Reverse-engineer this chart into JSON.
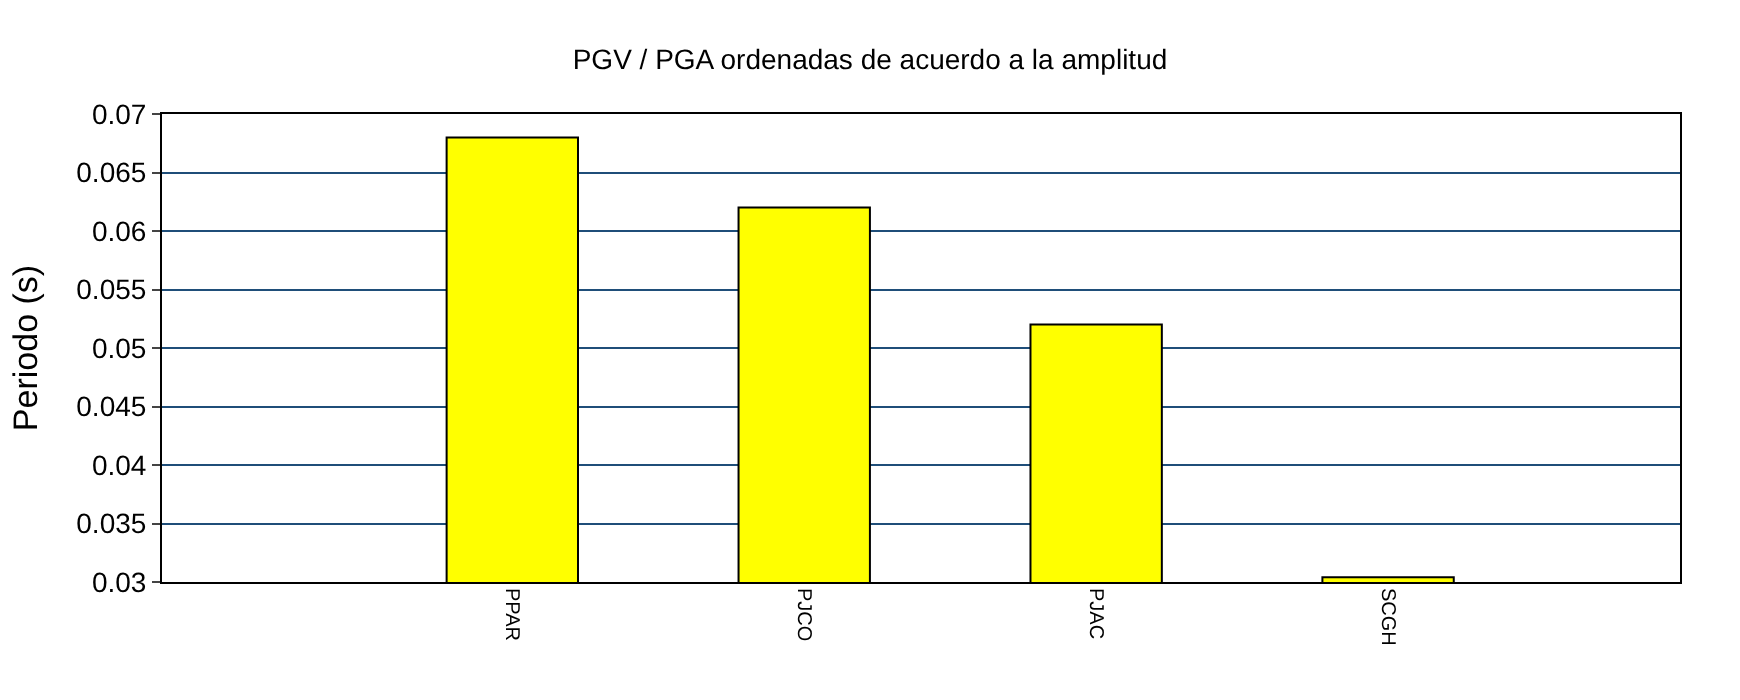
{
  "chart_data": {
    "type": "bar",
    "title": "PGV / PGA ordenadas de acuerdo a la amplitud",
    "ylabel": "Periodo (s)",
    "categories": [
      "PPAR",
      "PJCO",
      "PJAC",
      "SCGH"
    ],
    "values": [
      0.068,
      0.062,
      0.052,
      0.0304
    ],
    "color": "#ffff00",
    "ylim": [
      0.03,
      0.07
    ],
    "yticks": [
      0.03,
      0.035,
      0.04,
      0.045,
      0.05,
      0.055,
      0.06,
      0.065,
      0.07
    ],
    "grid": "y",
    "legend": false
  }
}
